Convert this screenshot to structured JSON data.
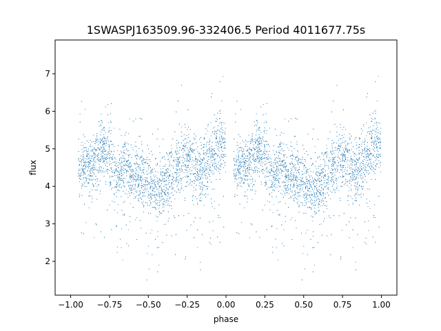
{
  "chart_data": {
    "type": "scatter",
    "title": "1SWASPJ163509.96-332406.5 Period 4011677.75s",
    "xlabel": "phase",
    "ylabel": "flux",
    "xlim": [
      -1.1,
      1.1
    ],
    "ylim": [
      1.1,
      7.9
    ],
    "xticks": [
      -1.0,
      -0.75,
      -0.5,
      -0.25,
      0.0,
      0.25,
      0.5,
      0.75,
      1.0
    ],
    "xtick_labels": [
      "−1.00",
      "−0.75",
      "−0.50",
      "−0.25",
      "0.00",
      "0.25",
      "0.50",
      "0.75",
      "1.00"
    ],
    "yticks": [
      2,
      3,
      4,
      5,
      6,
      7
    ],
    "ytick_labels": [
      "2",
      "3",
      "4",
      "5",
      "6",
      "7"
    ],
    "grid": false,
    "marker_color": "#1f77b4",
    "series": [
      {
        "phase_range": [
          -0.95,
          1.0
        ],
        "trend": [
          {
            "x": 0.05,
            "y": 4.6
          },
          {
            "x": 0.1,
            "y": 4.5
          },
          {
            "x": 0.15,
            "y": 4.6
          },
          {
            "x": 0.2,
            "y": 5.0
          },
          {
            "x": 0.25,
            "y": 4.9
          },
          {
            "x": 0.3,
            "y": 4.3
          },
          {
            "x": 0.35,
            "y": 4.5
          },
          {
            "x": 0.4,
            "y": 4.3
          },
          {
            "x": 0.45,
            "y": 4.3
          },
          {
            "x": 0.5,
            "y": 4.1
          },
          {
            "x": 0.55,
            "y": 3.8
          },
          {
            "x": 0.6,
            "y": 4.1
          },
          {
            "x": 0.65,
            "y": 4.3
          },
          {
            "x": 0.7,
            "y": 4.6
          },
          {
            "x": 0.75,
            "y": 4.8
          },
          {
            "x": 0.8,
            "y": 4.5
          },
          {
            "x": 0.85,
            "y": 4.4
          },
          {
            "x": 0.9,
            "y": 4.8
          },
          {
            "x": 0.95,
            "y": 5.1
          },
          {
            "x": 1.0,
            "y": 5.2
          }
        ]
      }
    ]
  }
}
